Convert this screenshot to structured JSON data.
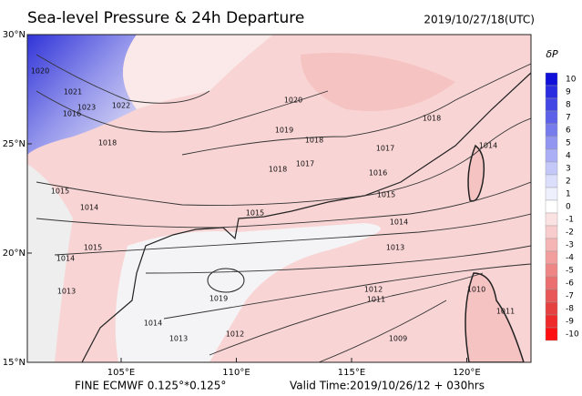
{
  "header": {
    "title": "Sea-level Pressure & 24h Departure",
    "time": "2019/10/27/18(UTC)"
  },
  "axes": {
    "lat_ticks": [
      {
        "value": 30,
        "label": "30°N"
      },
      {
        "value": 25,
        "label": "25°N"
      },
      {
        "value": 20,
        "label": "20°N"
      },
      {
        "value": 15,
        "label": "15°N"
      }
    ],
    "lon_ticks": [
      {
        "value": 105,
        "label": "105°E"
      },
      {
        "value": 110,
        "label": "110°E"
      },
      {
        "value": 115,
        "label": "115°E"
      },
      {
        "value": 120,
        "label": "120°E"
      }
    ]
  },
  "colorbar": {
    "title": "δP",
    "levels": [
      {
        "value": 10,
        "color": "#1010d8"
      },
      {
        "value": 9,
        "color": "#2a2ee0"
      },
      {
        "value": 8,
        "color": "#4348e4"
      },
      {
        "value": 7,
        "color": "#5d62e8"
      },
      {
        "value": 6,
        "color": "#777ced"
      },
      {
        "value": 5,
        "color": "#9196f1"
      },
      {
        "value": 4,
        "color": "#abaff5"
      },
      {
        "value": 3,
        "color": "#c4c8f8"
      },
      {
        "value": 2,
        "color": "#dcdffb"
      },
      {
        "value": 1,
        "color": "#eef0fd"
      },
      {
        "value": 0,
        "color": "#ffffff"
      },
      {
        "value": -1,
        "color": "#fbe2e2"
      },
      {
        "value": -2,
        "color": "#f8cccc"
      },
      {
        "value": -3,
        "color": "#f5b5b5"
      },
      {
        "value": -4,
        "color": "#f29e9e"
      },
      {
        "value": -5,
        "color": "#ef8686"
      },
      {
        "value": -6,
        "color": "#ec6f6f"
      },
      {
        "value": -7,
        "color": "#e95858"
      },
      {
        "value": -8,
        "color": "#e64141"
      },
      {
        "value": -9,
        "color": "#ee2a2a"
      },
      {
        "value": -10,
        "color": "#ff1010"
      }
    ]
  },
  "isobar_labels": [
    "1020",
    "1021",
    "1023",
    "1022",
    "1016",
    "1018",
    "1020",
    "1019",
    "1018",
    "1017",
    "1018",
    "1017",
    "1016",
    "1015",
    "1018",
    "1014",
    "1015",
    "1014",
    "1015",
    "1014",
    "1013",
    "1015",
    "1014",
    "1013",
    "1012",
    "1011",
    "1019",
    "1014",
    "1012",
    "1013",
    "1009",
    "1010",
    "1011"
  ],
  "footer": {
    "model": "FINE ECMWF 0.125°*0.125°",
    "valid": "Valid Time:2019/10/26/12 + 030hrs"
  }
}
